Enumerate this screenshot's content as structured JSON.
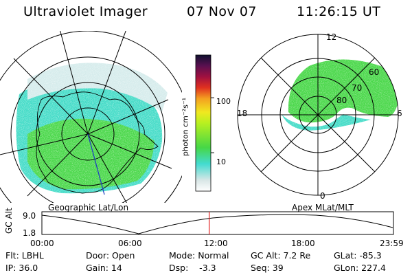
{
  "header": {
    "title": "Ultraviolet Imager",
    "date": "07 Nov 07",
    "time": "11:26:15 UT"
  },
  "left_panel": {
    "caption": "Geographic Lat/Lon"
  },
  "right_panel": {
    "caption": "Apex MLat/MLT",
    "mlt_labels": {
      "top": "12",
      "left": "18",
      "right": "6",
      "bottom": "0"
    },
    "lat_labels": [
      "80",
      "70",
      "60"
    ]
  },
  "colorbar": {
    "axis_label": "photon cm⁻²s⁻¹",
    "ticks": [
      {
        "label": "100",
        "value": 100
      },
      {
        "label": "10",
        "value": 10
      }
    ]
  },
  "altitude_track": {
    "ylabel": "GC Alt",
    "y_ticks": [
      "9.0",
      "1.8"
    ],
    "x_ticks": [
      "00:00",
      "06:00",
      "12:00",
      "18:00",
      "23:59"
    ],
    "current_time_fraction": 0.476
  },
  "status": {
    "row1": [
      {
        "key": "flt",
        "text": "Flt: LBHL"
      },
      {
        "key": "door",
        "text": "Door: Open"
      },
      {
        "key": "mode",
        "text": "Mode: Normal"
      },
      {
        "key": "gcalt",
        "text": "GC Alt: 7.2 Re"
      },
      {
        "key": "glat",
        "text": "GLat: -85.3"
      }
    ],
    "row2": [
      {
        "key": "ip",
        "text": "IP: 36.0"
      },
      {
        "key": "gain",
        "text": "Gain: 14"
      },
      {
        "key": "dsp",
        "text": "Dsp:    -3.3"
      },
      {
        "key": "seq",
        "text": "Seq: 39"
      },
      {
        "key": "glon",
        "text": "GLon: 227.4"
      }
    ]
  },
  "colors": {
    "aurora_green": "#46d746",
    "aurora_cyan": "#43dbd0",
    "track_marker": "#e02020"
  }
}
